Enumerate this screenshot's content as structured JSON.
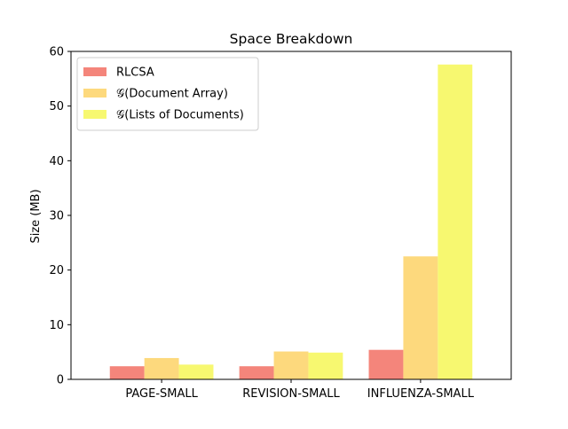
{
  "chart_data": {
    "type": "bar",
    "title": "Space Breakdown",
    "xlabel": "",
    "ylabel": "Size (MB)",
    "categories": [
      "PAGE-SMALL",
      "REVISION-SMALL",
      "INFLUENZA-SMALL"
    ],
    "series": [
      {
        "name": "RLCSA",
        "values": [
          2.4,
          2.4,
          5.4
        ],
        "color": "#f4857b"
      },
      {
        "name": "𝒢(Document Array)",
        "values": [
          3.9,
          5.1,
          22.5
        ],
        "color": "#fdd97d"
      },
      {
        "name": "𝒢(Lists of Documents)",
        "values": [
          2.7,
          4.9,
          57.6
        ],
        "color": "#f7f870"
      }
    ],
    "ylim": [
      0,
      60
    ],
    "yticks": [
      0,
      10,
      20,
      30,
      40,
      50,
      60
    ],
    "grid": false,
    "legend_position": "top-left"
  }
}
